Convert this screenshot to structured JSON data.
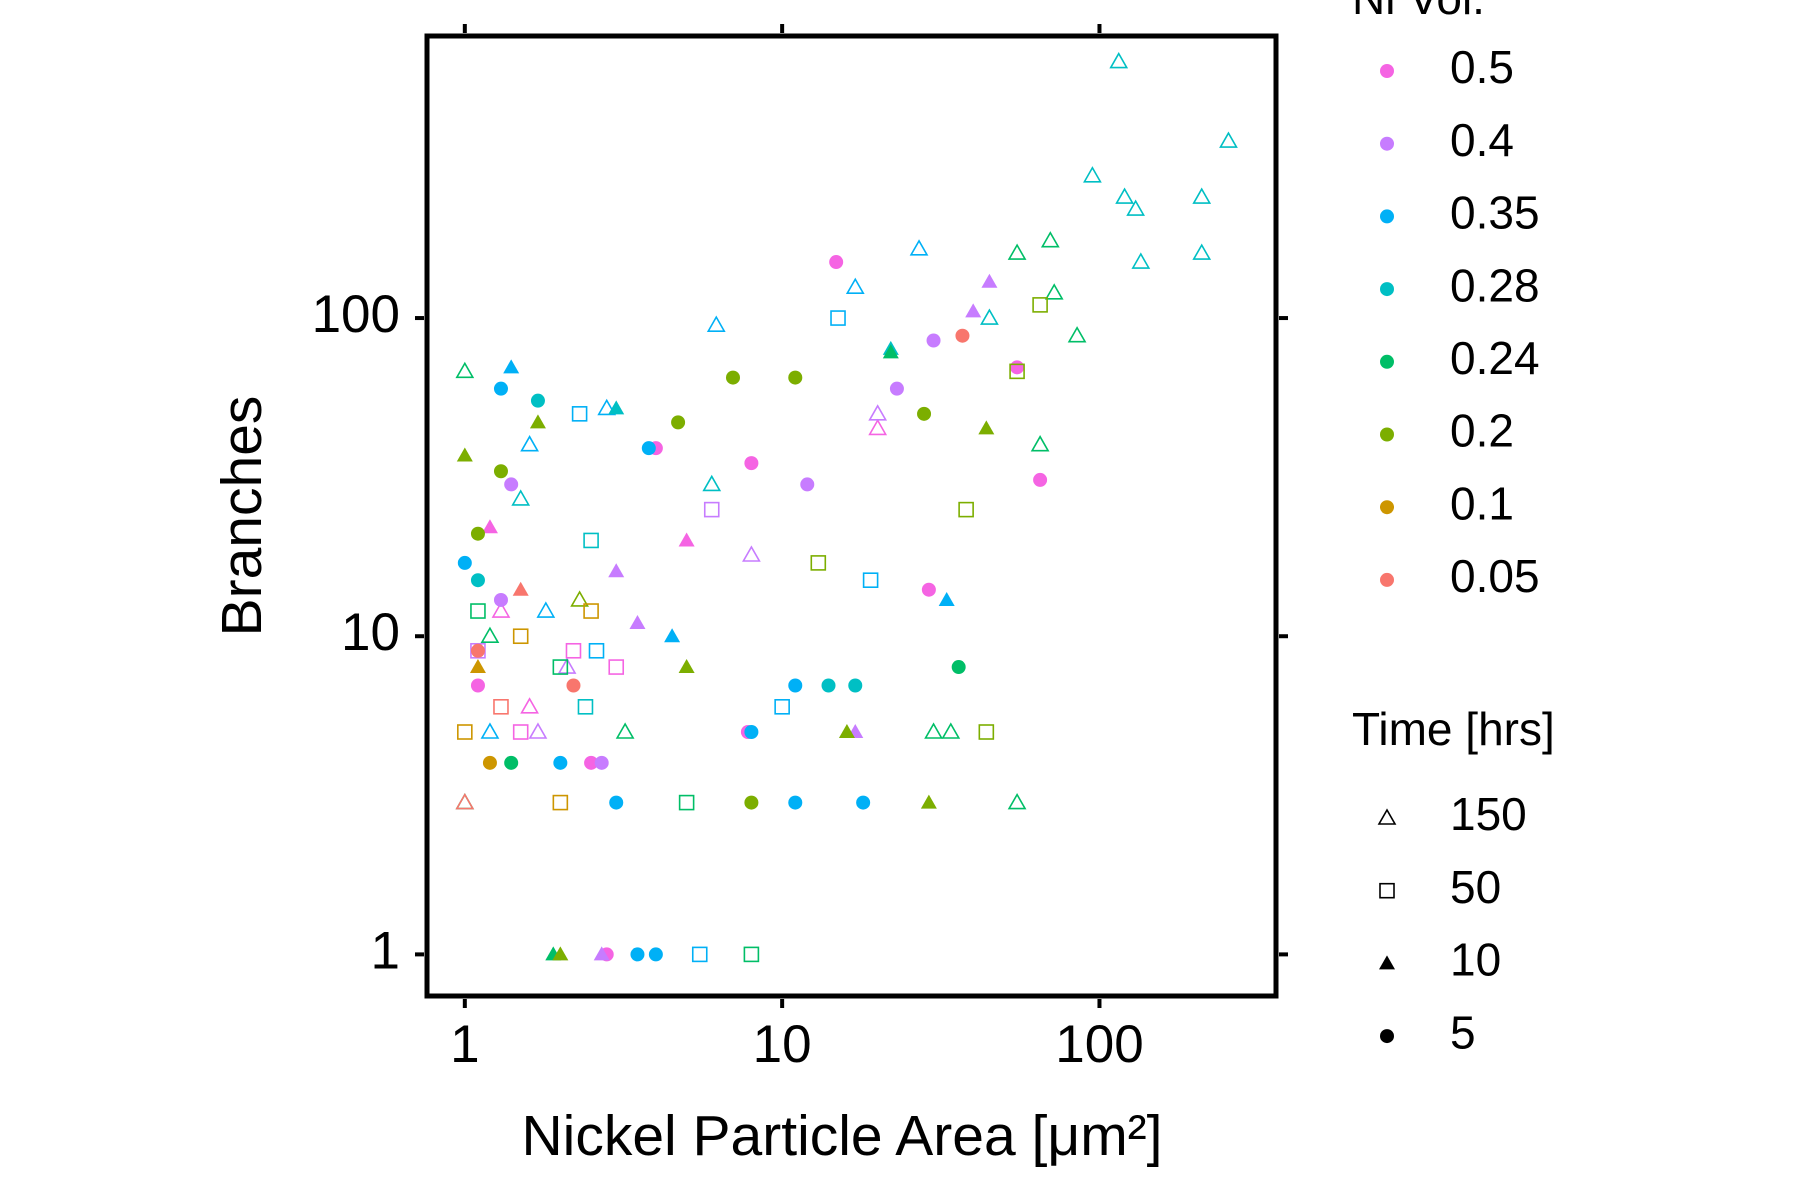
{
  "chart_data": {
    "type": "scatter",
    "xlabel": "Nickel Particle Area [μm²]",
    "ylabel": "Branches",
    "xscale": "log",
    "yscale": "log",
    "xlim": [
      0.76,
      360
    ],
    "ylim": [
      0.74,
      770
    ],
    "xticks": [
      1,
      10,
      100
    ],
    "yticks": [
      1,
      10,
      100
    ],
    "color_legend_title": "Ni Vol.",
    "shape_legend": {
      "title": "Time [hrs]",
      "values": [
        150,
        50,
        10,
        5
      ],
      "shapes": [
        "open-triangle",
        "open-square",
        "triangle",
        "circle"
      ]
    },
    "series": [
      {
        "name": "0.5",
        "color": "#F564E3",
        "x": [
          14.8,
          65,
          29,
          4,
          7.8,
          2.8,
          1.3,
          3,
          5,
          8,
          20,
          55,
          1.5,
          2.5,
          1.2,
          1.1,
          1.6,
          2.2
        ],
        "values": [
          150,
          31,
          14,
          39,
          5,
          1,
          12,
          8,
          20,
          35,
          45,
          70,
          5,
          4,
          22,
          7,
          6,
          9
        ],
        "time": [
          5,
          5,
          5,
          5,
          5,
          5,
          150,
          50,
          10,
          5,
          150,
          5,
          50,
          5,
          10,
          5,
          150,
          50
        ]
      },
      {
        "name": "0.4",
        "color": "#C77CFF",
        "x": [
          40,
          45,
          30,
          17,
          2.7,
          2.7,
          20,
          12,
          6,
          3,
          1.4,
          1.1,
          23,
          8,
          1.7,
          1.3,
          2.1,
          3.5
        ],
        "values": [
          105,
          130,
          85,
          5,
          1,
          4,
          50,
          30,
          25,
          16,
          30,
          9,
          60,
          18,
          5,
          13,
          8,
          11
        ],
        "time": [
          10,
          10,
          5,
          10,
          10,
          5,
          150,
          5,
          50,
          10,
          5,
          50,
          5,
          150,
          150,
          5,
          150,
          10
        ]
      },
      {
        "name": "0.35",
        "color": "#00B0F6",
        "x": [
          1.3,
          1.6,
          2.8,
          2.3,
          3.8,
          6.2,
          17,
          27,
          15,
          33,
          18,
          11,
          4,
          3.5,
          5.5,
          1,
          1.4,
          8,
          19,
          10,
          11,
          1.2,
          2,
          3,
          4.5,
          1.8,
          2.6
        ],
        "values": [
          60,
          40,
          52,
          50,
          39,
          95,
          125,
          165,
          100,
          13,
          3,
          3,
          1,
          1,
          1,
          17,
          70,
          5,
          15,
          6,
          7,
          5,
          4,
          3,
          10,
          12,
          9
        ],
        "time": [
          5,
          150,
          150,
          50,
          5,
          150,
          150,
          150,
          50,
          10,
          5,
          5,
          5,
          5,
          50,
          5,
          10,
          5,
          50,
          50,
          5,
          150,
          5,
          5,
          10,
          150,
          50
        ]
      },
      {
        "name": "0.28",
        "color": "#00BFC4",
        "x": [
          115,
          255,
          95,
          120,
          130,
          210,
          210,
          135,
          45,
          17,
          14,
          3,
          1.7,
          2.5,
          6,
          22,
          1.1,
          1.5,
          2.4
        ],
        "values": [
          640,
          360,
          280,
          240,
          220,
          240,
          160,
          150,
          100,
          7,
          7,
          52,
          55,
          20,
          30,
          80,
          15,
          27,
          6
        ],
        "time": [
          150,
          150,
          150,
          150,
          150,
          150,
          150,
          150,
          150,
          5,
          5,
          10,
          5,
          50,
          150,
          10,
          5,
          150,
          50
        ]
      },
      {
        "name": "0.24",
        "color": "#00BE67",
        "x": [
          55,
          70,
          72,
          85,
          65,
          55,
          30,
          34,
          8,
          1,
          5,
          1,
          1.2,
          2,
          22,
          36,
          1.4,
          1.9,
          3.2,
          1.1
        ],
        "values": [
          160,
          175,
          120,
          88,
          40,
          3,
          5,
          5,
          1,
          68,
          3,
          3,
          10,
          8,
          78,
          8,
          4,
          1,
          5,
          12
        ],
        "time": [
          150,
          150,
          150,
          150,
          150,
          150,
          150,
          150,
          50,
          150,
          50,
          150,
          150,
          50,
          10,
          5,
          5,
          10,
          150,
          50
        ]
      },
      {
        "name": "0.2",
        "color": "#7CAE00",
        "x": [
          1,
          1.7,
          7,
          11,
          28,
          29,
          44,
          38,
          8,
          4.7,
          1.3,
          16,
          2,
          44,
          65,
          55,
          13,
          5,
          1.1,
          2.3
        ],
        "values": [
          37,
          47,
          65,
          65,
          50,
          3,
          45,
          25,
          3,
          47,
          33,
          5,
          1,
          5,
          110,
          68,
          17,
          8,
          21,
          13
        ],
        "time": [
          10,
          10,
          5,
          5,
          5,
          10,
          10,
          50,
          5,
          5,
          5,
          10,
          10,
          50,
          50,
          50,
          50,
          10,
          5,
          150
        ]
      },
      {
        "name": "0.1",
        "color": "#CD9600",
        "x": [
          1,
          1.2,
          1.5,
          2,
          1.1,
          2.5
        ],
        "values": [
          5,
          4,
          10,
          3,
          8,
          12
        ],
        "time": [
          50,
          5,
          50,
          50,
          10,
          50
        ]
      },
      {
        "name": "0.05",
        "color": "#F8766D",
        "x": [
          1.1,
          1.3,
          1,
          2.2,
          1.5,
          37
        ],
        "values": [
          9,
          6,
          3,
          7,
          14,
          88
        ],
        "time": [
          5,
          50,
          150,
          5,
          10,
          5
        ]
      }
    ]
  }
}
